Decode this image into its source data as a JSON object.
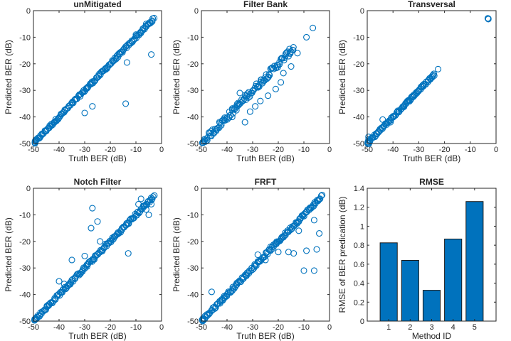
{
  "figure": {
    "background": "#ffffff",
    "accent": "#0072BD"
  },
  "chart_data": [
    {
      "type": "scatter",
      "title": "unMitigated",
      "xlabel": "Truth BER (dB)",
      "ylabel": "Predicted BER (dB)",
      "xlim": [
        -50,
        0
      ],
      "ylim": [
        -50,
        0
      ],
      "xticks": [
        -50,
        -40,
        -30,
        -20,
        -10,
        0
      ],
      "yticks": [
        0,
        -10,
        -20,
        -30,
        -40,
        -50
      ],
      "marker": "circle-open",
      "color": "#0072BD",
      "trend": {
        "from": [
          -49.5,
          -49.5
        ],
        "to": [
          -3,
          -3
        ],
        "count": 160,
        "noise": 0.5
      },
      "cluster": {
        "at": [
          -49.5,
          -49.5
        ],
        "count": 4
      },
      "outliers": [
        [
          -4,
          -16.5
        ],
        [
          -13.5,
          -19.5
        ],
        [
          -14,
          -35
        ],
        [
          -30,
          -38.5
        ],
        [
          -27,
          -36
        ],
        [
          -17,
          -17.5
        ],
        [
          -10,
          -9
        ],
        [
          -6,
          -5
        ]
      ]
    },
    {
      "type": "scatter",
      "title": "Filter Bank",
      "xlabel": "Truth BER (dB)",
      "ylabel": "Predicted BER (dB)",
      "xlim": [
        -50,
        0
      ],
      "ylim": [
        -50,
        0
      ],
      "xticks": [
        -50,
        -40,
        -30,
        -20,
        -10,
        0
      ],
      "yticks": [
        0,
        -10,
        -20,
        -30,
        -40,
        -50
      ],
      "marker": "circle-open",
      "color": "#0072BD",
      "trend": {
        "from": [
          -49.5,
          -49.5
        ],
        "to": [
          -14,
          -14
        ],
        "count": 120,
        "noise": 1.2
      },
      "cluster": {
        "at": [
          -49.5,
          -49.5
        ],
        "count": 4
      },
      "outliers": [
        [
          -6.5,
          -6.5
        ],
        [
          -9,
          -10
        ],
        [
          -12.5,
          -16
        ],
        [
          -15,
          -21
        ],
        [
          -18,
          -23.5
        ],
        [
          -19,
          -27
        ],
        [
          -21,
          -29.5
        ],
        [
          -24,
          -32
        ],
        [
          -27,
          -34
        ],
        [
          -35,
          -31
        ],
        [
          -38,
          -40
        ],
        [
          -36,
          -36
        ],
        [
          -33,
          -42
        ],
        [
          -29,
          -36
        ],
        [
          -31,
          -38
        ]
      ]
    },
    {
      "type": "scatter",
      "title": "Transversal",
      "xlabel": "Truth BER (dB)",
      "ylabel": "Predicted BER (dB)",
      "xlim": [
        -50,
        0
      ],
      "ylim": [
        -50,
        0
      ],
      "xticks": [
        -50,
        -40,
        -30,
        -20,
        -10,
        0
      ],
      "yticks": [
        0,
        -10,
        -20,
        -30,
        -40,
        -50
      ],
      "marker": "circle-open",
      "color": "#0072BD",
      "trend": {
        "from": [
          -49.5,
          -49.5
        ],
        "to": [
          -24,
          -24
        ],
        "count": 100,
        "noise": 0.5
      },
      "cluster": {
        "at": [
          -49.5,
          -49.5
        ],
        "count": 6
      },
      "outliers": [
        [
          -3,
          -3
        ],
        [
          -3,
          -3.2
        ],
        [
          -3.2,
          -2.9
        ],
        [
          -22.5,
          -22
        ],
        [
          -25,
          -25
        ],
        [
          -44,
          -41
        ],
        [
          -41,
          -42
        ],
        [
          -49.5,
          -47.5
        ],
        [
          -49.5,
          -48.5
        ],
        [
          -49.8,
          -49.5
        ]
      ]
    },
    {
      "type": "scatter",
      "title": "Notch Filter",
      "xlabel": "Truth BER (dB)",
      "ylabel": "Predicted BER (dB)",
      "xlim": [
        -50,
        0
      ],
      "ylim": [
        -50,
        0
      ],
      "xticks": [
        -50,
        -40,
        -30,
        -20,
        -10,
        0
      ],
      "yticks": [
        0,
        -10,
        -20,
        -30,
        -40,
        -50
      ],
      "marker": "circle-open",
      "color": "#0072BD",
      "trend": {
        "from": [
          -49.5,
          -49.5
        ],
        "to": [
          -3,
          -3
        ],
        "count": 160,
        "noise": 0.6
      },
      "cluster": {
        "at": [
          -49.5,
          -49.5
        ],
        "count": 4
      },
      "outliers": [
        [
          -27,
          -7.5
        ],
        [
          -27.5,
          -15
        ],
        [
          -25,
          -12.5
        ],
        [
          -13,
          -24.5
        ],
        [
          -30,
          -25.5
        ],
        [
          -35,
          -27
        ],
        [
          -38,
          -36
        ],
        [
          -40,
          -35
        ],
        [
          -24,
          -20
        ],
        [
          -22,
          -21
        ],
        [
          -8,
          -4
        ],
        [
          -6,
          -8
        ],
        [
          -9,
          -6
        ],
        [
          -5,
          -10
        ],
        [
          -4,
          -6
        ]
      ]
    },
    {
      "type": "scatter",
      "title": "FRFT",
      "xlabel": "Truth BER (dB)",
      "ylabel": "Predicted BER (dB)",
      "xlim": [
        -50,
        0
      ],
      "ylim": [
        -50,
        0
      ],
      "xticks": [
        -50,
        -40,
        -30,
        -20,
        -10,
        0
      ],
      "yticks": [
        0,
        -10,
        -20,
        -30,
        -40,
        -50
      ],
      "marker": "circle-open",
      "color": "#0072BD",
      "trend": {
        "from": [
          -49.5,
          -49.5
        ],
        "to": [
          -3,
          -3
        ],
        "count": 160,
        "noise": 0.6
      },
      "cluster": {
        "at": [
          -49.5,
          -49.5
        ],
        "count": 4
      },
      "outliers": [
        [
          -46,
          -39
        ],
        [
          -10,
          -31
        ],
        [
          -6,
          -31
        ],
        [
          -9,
          -23.5
        ],
        [
          -5,
          -23
        ],
        [
          -4,
          -17
        ],
        [
          -16,
          -24
        ],
        [
          -25,
          -27
        ],
        [
          -28,
          -25
        ],
        [
          -14,
          -24.5
        ],
        [
          -20,
          -24
        ],
        [
          -23,
          -22
        ],
        [
          -6,
          -12
        ],
        [
          -12,
          -16
        ]
      ]
    },
    {
      "type": "bar",
      "title": "RMSE",
      "xlabel": "Method ID",
      "ylabel": "RMSE of BER predication (dB)",
      "categories": [
        "1",
        "2",
        "3",
        "4",
        "5"
      ],
      "values": [
        0.825,
        0.64,
        0.325,
        0.865,
        1.26
      ],
      "ylim": [
        0,
        1.4
      ],
      "yticks": [
        "0",
        "0.2",
        "0.4",
        "0.6",
        "0.8",
        "1",
        "1.2",
        "1.4"
      ],
      "color": "#0072BD"
    }
  ]
}
